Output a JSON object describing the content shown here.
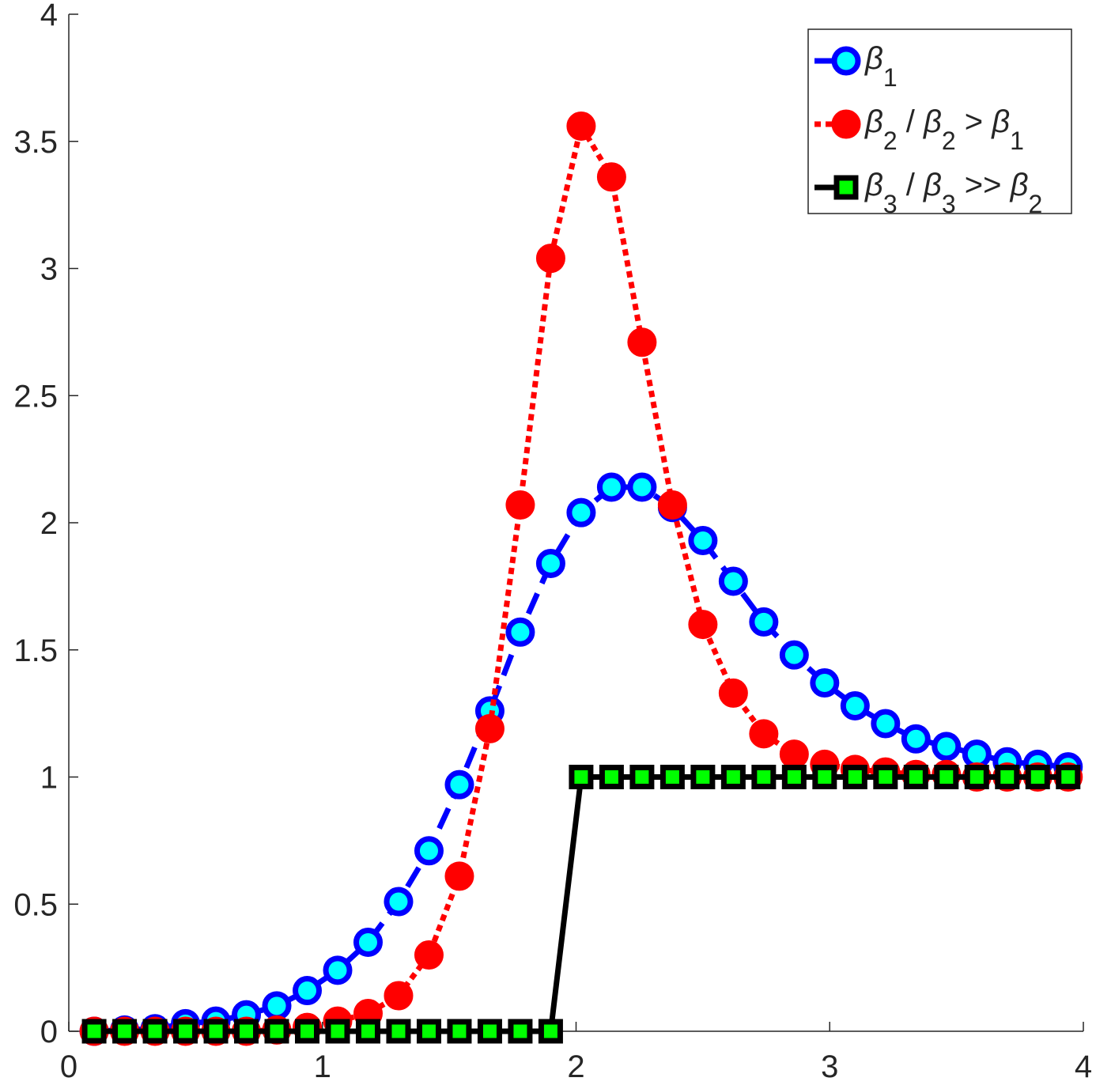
{
  "chart_data": {
    "type": "line",
    "x": [
      0.1,
      0.22,
      0.34,
      0.46,
      0.58,
      0.7,
      0.82,
      0.94,
      1.06,
      1.18,
      1.3,
      1.42,
      1.54,
      1.66,
      1.78,
      1.9,
      2.02,
      2.14,
      2.26,
      2.38,
      2.5,
      2.62,
      2.74,
      2.86,
      2.98,
      3.1,
      3.22,
      3.34,
      3.46,
      3.58,
      3.7,
      3.82,
      3.94
    ],
    "series": [
      {
        "name": "β1",
        "color": "#0000ff",
        "marker_fill": "#00ffff",
        "marker": "circle",
        "dash": "dashed",
        "values": [
          0,
          0.005,
          0.01,
          0.03,
          0.04,
          0.065,
          0.1,
          0.16,
          0.24,
          0.35,
          0.51,
          0.71,
          0.97,
          1.26,
          1.57,
          1.84,
          2.04,
          2.14,
          2.14,
          2.06,
          1.93,
          1.77,
          1.61,
          1.48,
          1.37,
          1.28,
          1.21,
          1.15,
          1.12,
          1.09,
          1.06,
          1.05,
          1.04
        ]
      },
      {
        "name": "β2 / β2 > β1",
        "color": "#ff0000",
        "marker_fill": "#ff0000",
        "marker": "circle",
        "dash": "dotted",
        "values": [
          0,
          0,
          0,
          0,
          0,
          0,
          0.005,
          0.015,
          0.04,
          0.07,
          0.14,
          0.3,
          0.61,
          1.19,
          2.07,
          3.04,
          3.56,
          3.36,
          2.71,
          2.07,
          1.6,
          1.33,
          1.17,
          1.09,
          1.05,
          1.03,
          1.02,
          1.01,
          1.01,
          1,
          1,
          1,
          1
        ]
      },
      {
        "name": "β3 / β3 >> β2",
        "color": "#000000",
        "marker_fill": "#00ff00",
        "marker": "square",
        "dash": "solid",
        "values": [
          0,
          0,
          0,
          0,
          0,
          0,
          0,
          0,
          0,
          0,
          0,
          0,
          0,
          0,
          0,
          0,
          1,
          1,
          1,
          1,
          1,
          1,
          1,
          1,
          1,
          1,
          1,
          1,
          1,
          1,
          1,
          1,
          1
        ]
      }
    ],
    "xlim": [
      0,
      4
    ],
    "xticks": [
      0,
      1,
      2,
      3,
      4
    ],
    "ylim": [
      0,
      4
    ],
    "yticks": [
      0,
      0.5,
      1,
      1.5,
      2,
      2.5,
      3,
      3.5,
      4
    ],
    "legend": "northeast"
  }
}
